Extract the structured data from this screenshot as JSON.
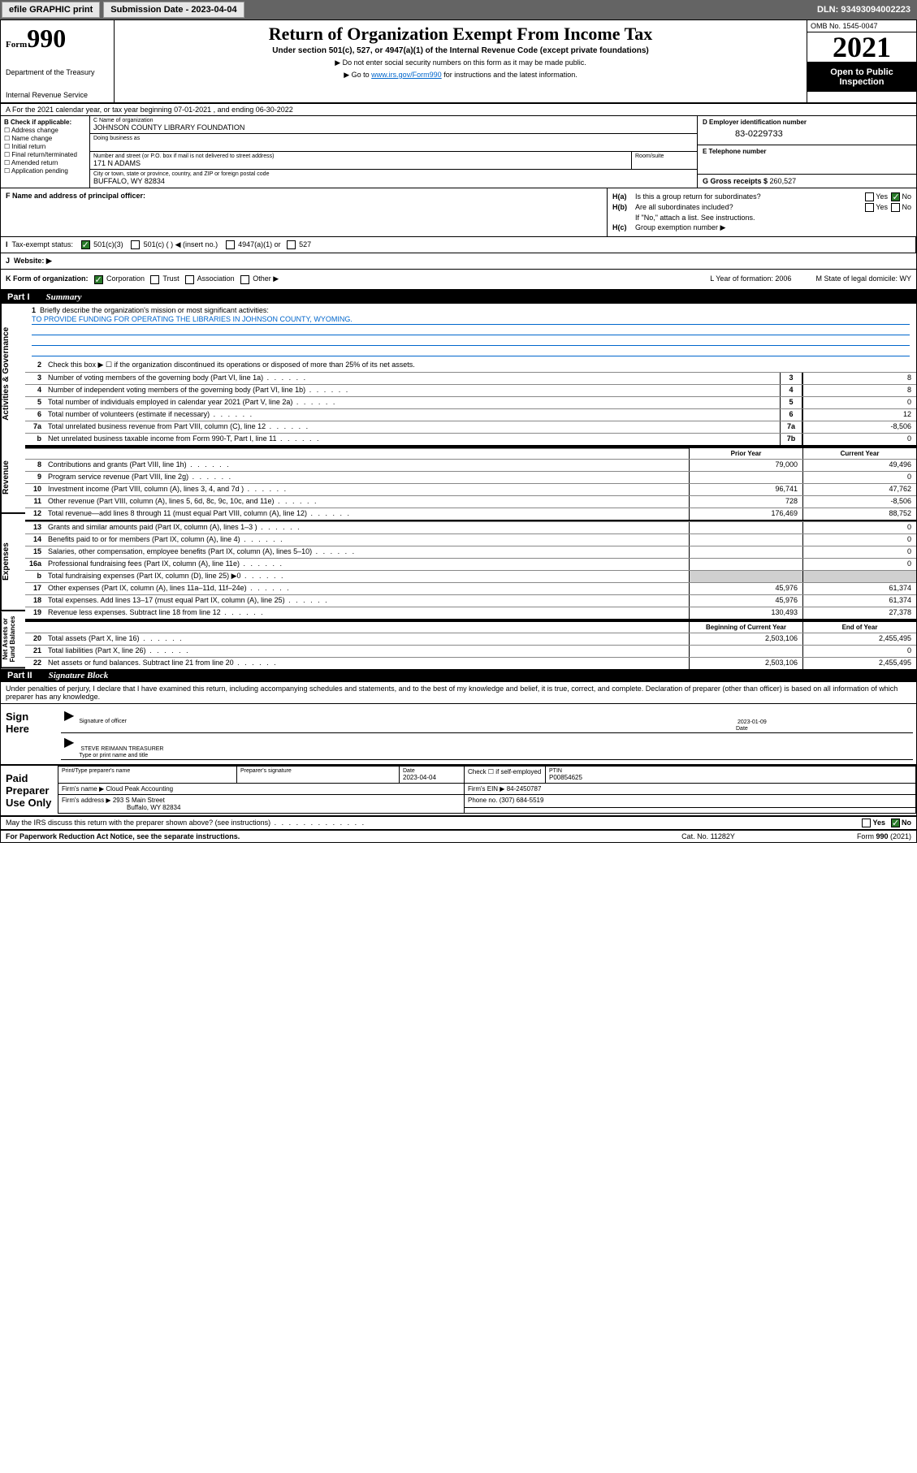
{
  "toolbar": {
    "efile": "efile GRAPHIC print",
    "submission_label": "Submission Date - 2023-04-04",
    "dln": "DLN: 93493094002223"
  },
  "header": {
    "form_word": "Form",
    "form_num": "990",
    "dept": "Department of the Treasury",
    "irs_line": "Internal Revenue Service",
    "title": "Return of Organization Exempt From Income Tax",
    "sub": "Under section 501(c), 527, or 4947(a)(1) of the Internal Revenue Code (except private foundations)",
    "note1": "▶ Do not enter social security numbers on this form as it may be made public.",
    "note2_pre": "▶ Go to ",
    "note2_link": "www.irs.gov/Form990",
    "note2_post": " for instructions and the latest information.",
    "omb": "OMB No. 1545-0047",
    "year": "2021",
    "open1": "Open to Public",
    "open2": "Inspection"
  },
  "rowA": "A For the 2021 calendar year, or tax year beginning 07-01-2021   , and ending 06-30-2022",
  "colB": {
    "hdr": "B Check if applicable:",
    "opts": [
      "Address change",
      "Name change",
      "Initial return",
      "Final return/terminated",
      "Amended return",
      "Application pending"
    ]
  },
  "nameC": {
    "lbl": "C Name of organization",
    "val": "JOHNSON COUNTY LIBRARY FOUNDATION",
    "dba_lbl": "Doing business as"
  },
  "addr": {
    "street_lbl": "Number and street (or P.O. box if mail is not delivered to street address)",
    "street": "171 N ADAMS",
    "room_lbl": "Room/suite",
    "city_lbl": "City or town, state or province, country, and ZIP or foreign postal code",
    "city": "BUFFALO, WY  82834"
  },
  "einD": {
    "lbl": "D Employer identification number",
    "val": "83-0229733"
  },
  "telE": {
    "lbl": "E Telephone number"
  },
  "grossG": {
    "lbl": "G Gross receipts $ ",
    "val": "260,527"
  },
  "colF": {
    "lbl": "F  Name and address of principal officer:"
  },
  "colH": {
    "a_lbl": "H(a)",
    "a_txt": "Is this a group return for subordinates?",
    "b_lbl": "H(b)",
    "b_txt": "Are all subordinates included?",
    "b_note": "If \"No,\" attach a list. See instructions.",
    "c_lbl": "H(c)",
    "c_txt": "Group exemption number ▶",
    "yes": "Yes",
    "no": "No"
  },
  "rowI": {
    "lbl": "Tax-exempt status:",
    "o1": "501(c)(3)",
    "o2": "501(c) (  ) ◀ (insert no.)",
    "o3": "4947(a)(1) or",
    "o4": "527"
  },
  "rowJ": {
    "lbl": "Website: ▶"
  },
  "rowK": {
    "lbl": "K Form of organization:",
    "o1": "Corporation",
    "o2": "Trust",
    "o3": "Association",
    "o4": "Other ▶",
    "L": "L Year of formation: 2006",
    "M": "M State of legal domicile: WY"
  },
  "part1": {
    "num": "Part I",
    "title": "Summary"
  },
  "vtabs": {
    "gov": "Activities & Governance",
    "rev": "Revenue",
    "exp": "Expenses",
    "net": "Net Assets or\nFund Balances"
  },
  "brief": {
    "n": "1",
    "lbl": "Briefly describe the organization's mission or most significant activities:",
    "txt": "TO PROVIDE FUNDING FOR OPERATING THE LIBRARIES IN JOHNSON COUNTY, WYOMING."
  },
  "lines_gov": [
    {
      "n": "2",
      "desc": "Check this box ▶ ☐  if the organization discontinued its operations or disposed of more than 25% of its net assets.",
      "box": "",
      "v": ""
    },
    {
      "n": "3",
      "desc": "Number of voting members of the governing body (Part VI, line 1a)",
      "box": "3",
      "v": "8"
    },
    {
      "n": "4",
      "desc": "Number of independent voting members of the governing body (Part VI, line 1b)",
      "box": "4",
      "v": "8"
    },
    {
      "n": "5",
      "desc": "Total number of individuals employed in calendar year 2021 (Part V, line 2a)",
      "box": "5",
      "v": "0"
    },
    {
      "n": "6",
      "desc": "Total number of volunteers (estimate if necessary)",
      "box": "6",
      "v": "12"
    },
    {
      "n": "7a",
      "desc": "Total unrelated business revenue from Part VIII, column (C), line 12",
      "box": "7a",
      "v": "-8,506"
    },
    {
      "n": "b",
      "desc": "Net unrelated business taxable income from Form 990-T, Part I, line 11",
      "box": "7b",
      "v": "0"
    }
  ],
  "colhdr": {
    "prior": "Prior Year",
    "current": "Current Year",
    "beg": "Beginning of Current Year",
    "end": "End of Year"
  },
  "lines_rev": [
    {
      "n": "8",
      "desc": "Contributions and grants (Part VIII, line 1h)",
      "p": "79,000",
      "c": "49,496"
    },
    {
      "n": "9",
      "desc": "Program service revenue (Part VIII, line 2g)",
      "p": "",
      "c": "0"
    },
    {
      "n": "10",
      "desc": "Investment income (Part VIII, column (A), lines 3, 4, and 7d )",
      "p": "96,741",
      "c": "47,762"
    },
    {
      "n": "11",
      "desc": "Other revenue (Part VIII, column (A), lines 5, 6d, 8c, 9c, 10c, and 11e)",
      "p": "728",
      "c": "-8,506"
    },
    {
      "n": "12",
      "desc": "Total revenue—add lines 8 through 11 (must equal Part VIII, column (A), line 12)",
      "p": "176,469",
      "c": "88,752"
    }
  ],
  "lines_exp": [
    {
      "n": "13",
      "desc": "Grants and similar amounts paid (Part IX, column (A), lines 1–3 )",
      "p": "",
      "c": "0"
    },
    {
      "n": "14",
      "desc": "Benefits paid to or for members (Part IX, column (A), line 4)",
      "p": "",
      "c": "0"
    },
    {
      "n": "15",
      "desc": "Salaries, other compensation, employee benefits (Part IX, column (A), lines 5–10)",
      "p": "",
      "c": "0"
    },
    {
      "n": "16a",
      "desc": "Professional fundraising fees (Part IX, column (A), line 11e)",
      "p": "",
      "c": "0"
    },
    {
      "n": "b",
      "desc": "Total fundraising expenses (Part IX, column (D), line 25) ▶0",
      "p": "shade",
      "c": "shade"
    },
    {
      "n": "17",
      "desc": "Other expenses (Part IX, column (A), lines 11a–11d, 11f–24e)",
      "p": "45,976",
      "c": "61,374"
    },
    {
      "n": "18",
      "desc": "Total expenses. Add lines 13–17 (must equal Part IX, column (A), line 25)",
      "p": "45,976",
      "c": "61,374"
    },
    {
      "n": "19",
      "desc": "Revenue less expenses. Subtract line 18 from line 12",
      "p": "130,493",
      "c": "27,378"
    }
  ],
  "lines_net": [
    {
      "n": "20",
      "desc": "Total assets (Part X, line 16)",
      "p": "2,503,106",
      "c": "2,455,495"
    },
    {
      "n": "21",
      "desc": "Total liabilities (Part X, line 26)",
      "p": "",
      "c": "0"
    },
    {
      "n": "22",
      "desc": "Net assets or fund balances. Subtract line 21 from line 20",
      "p": "2,503,106",
      "c": "2,455,495"
    }
  ],
  "part2": {
    "num": "Part II",
    "title": "Signature Block"
  },
  "sig_intro": "Under penalties of perjury, I declare that I have examined this return, including accompanying schedules and statements, and to the best of my knowledge and belief, it is true, correct, and complete. Declaration of preparer (other than officer) is based on all information of which preparer has any knowledge.",
  "sign": {
    "here": "Sign Here",
    "date": "2023-01-09",
    "sig_lbl": "Signature of officer",
    "date_lbl": "Date",
    "name": "STEVE REIMANN TREASURER",
    "name_lbl": "Type or print name and title"
  },
  "paid": {
    "title": "Paid Preparer Use Only",
    "h1": "Print/Type preparer's name",
    "h2": "Preparer's signature",
    "h3_lbl": "Date",
    "h3": "2023-04-04",
    "h4": "Check ☐ if self-employed",
    "h5_lbl": "PTIN",
    "h5": "P00854625",
    "firm_lbl": "Firm's name   ▶",
    "firm": "Cloud Peak Accounting",
    "ein_lbl": "Firm's EIN ▶",
    "ein": "84-2450787",
    "addr_lbl": "Firm's address ▶",
    "addr1": "293 S Main Street",
    "addr2": "Buffalo, WY  82834",
    "phone_lbl": "Phone no.",
    "phone": "(307) 684-5519"
  },
  "discuss": "May the IRS discuss this return with the preparer shown above? (see instructions)",
  "footer": {
    "f1": "For Paperwork Reduction Act Notice, see the separate instructions.",
    "f2": "Cat. No. 11282Y",
    "f3": "Form 990 (2021)"
  }
}
